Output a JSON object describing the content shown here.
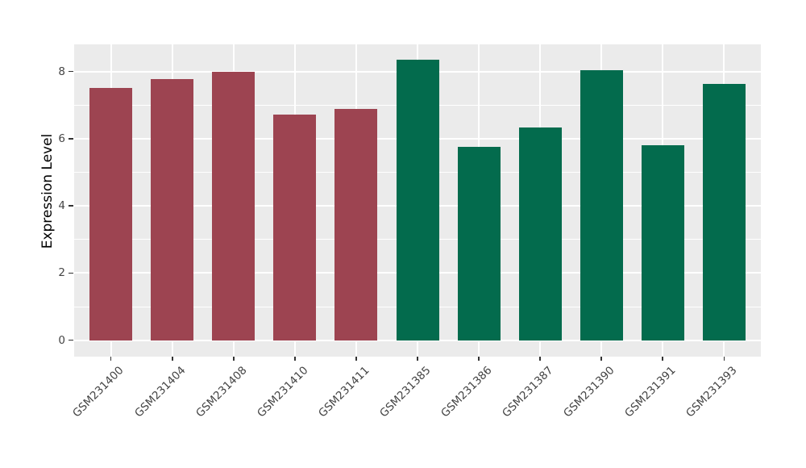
{
  "chart_data": {
    "type": "bar",
    "title": "",
    "xlabel": "",
    "ylabel": "Expression Level",
    "categories": [
      "GSM231400",
      "GSM231404",
      "GSM231408",
      "GSM231410",
      "GSM231411",
      "GSM231385",
      "GSM231386",
      "GSM231387",
      "GSM231390",
      "GSM231391",
      "GSM231393"
    ],
    "values": [
      7.5,
      7.76,
      8.0,
      6.71,
      6.89,
      8.35,
      5.75,
      6.33,
      8.03,
      5.8,
      7.62
    ],
    "bar_colors": [
      "#9d4451",
      "#9d4451",
      "#9d4451",
      "#9d4451",
      "#9d4451",
      "#036b4d",
      "#036b4d",
      "#036b4d",
      "#036b4d",
      "#036b4d",
      "#036b4d"
    ],
    "group_colors": {
      "left_group": "#9d4451",
      "right_group": "#036b4d"
    },
    "yticks": [
      0,
      2,
      4,
      6,
      8
    ],
    "minor_yticks": [
      1,
      3,
      5,
      7
    ],
    "ylim": [
      0,
      8.8
    ],
    "x_tick_rotation_deg": 45,
    "grid": true,
    "legend_position": "none",
    "panel_background": "#ebebeb",
    "gridline_color": "#ffffff",
    "tick_mark_color": "#333333",
    "axis_text_color": "#444444",
    "axis_title_color": "#000000"
  }
}
